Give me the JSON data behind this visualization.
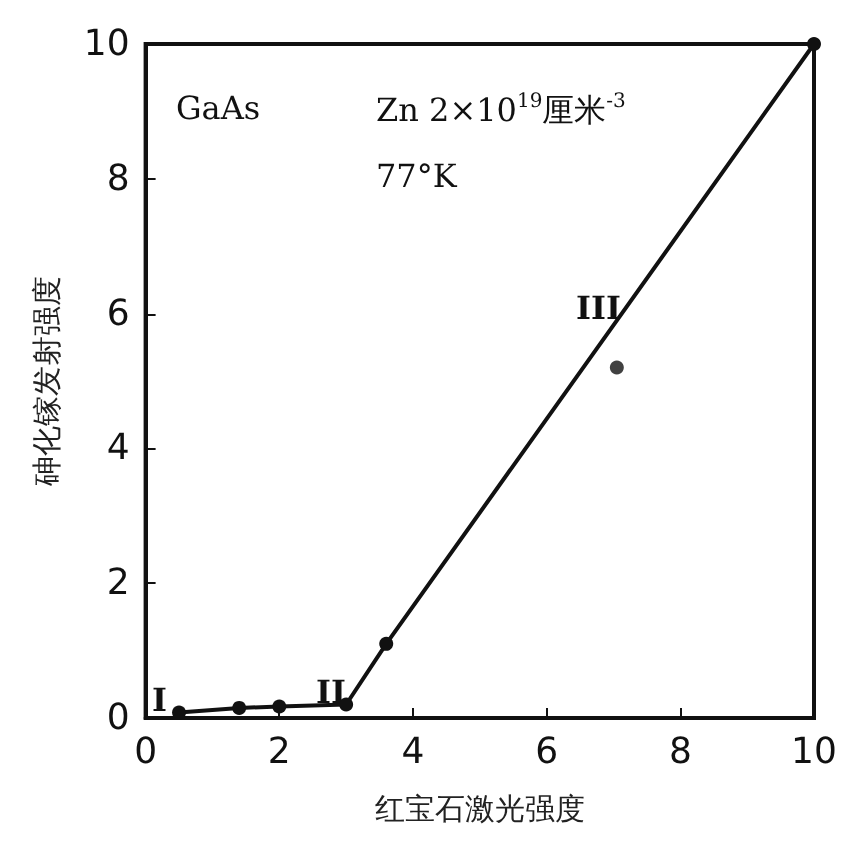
{
  "chart_data": {
    "type": "line",
    "xlabel": "红宝石激光强度",
    "ylabel": "砷化镓发射强度",
    "xlim": [
      0,
      10
    ],
    "ylim": [
      0,
      10
    ],
    "xticks": [
      0,
      2,
      4,
      6,
      8,
      10
    ],
    "yticks": [
      0,
      2,
      4,
      6,
      8,
      10
    ],
    "grid": false,
    "marker": "circle",
    "line_style": "solid",
    "series": [
      {
        "type": "line",
        "color": "#111111",
        "x": [
          0.5,
          1.4,
          2,
          3,
          3.6,
          10
        ],
        "values": [
          0.08,
          0.15,
          0.17,
          0.2,
          1.1,
          10
        ]
      },
      {
        "type": "scatter",
        "color": "#111111",
        "x": [
          7.05
        ],
        "values": [
          5.2
        ]
      }
    ],
    "annotations": [
      "GaAs",
      "Zn 2×10$^{19}$厘米$^{-3}$",
      "77°K",
      "I",
      "II",
      "III"
    ]
  }
}
